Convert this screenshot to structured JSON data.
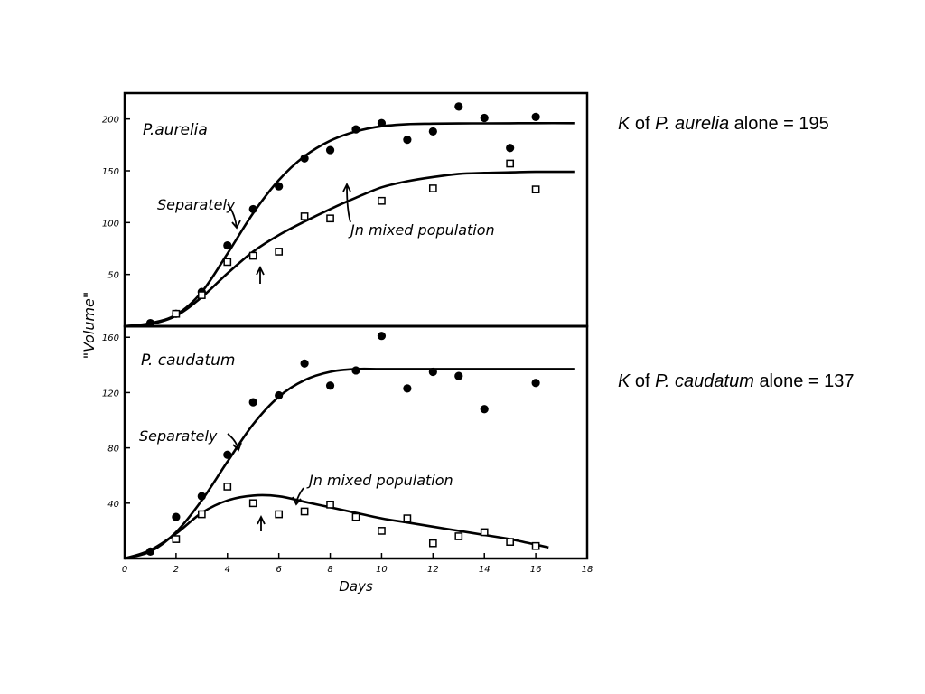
{
  "annotations": {
    "aurelia_note": {
      "k": "K",
      "of": "of",
      "species": "P. aurelia",
      "rest": "alone = 195"
    },
    "caudatum_note": {
      "k": "K",
      "of": "of",
      "species": "P. caudatum",
      "rest": "alone = 137"
    }
  },
  "chart_data": [
    {
      "type": "scatter",
      "panel_label": "P.aurelia",
      "ylabel": "\"Volume\"",
      "xlim": [
        0,
        18
      ],
      "ylim": [
        0,
        225
      ],
      "yticks": [
        50,
        100,
        150,
        200
      ],
      "grid": false,
      "annotations": [
        "Separately",
        "Jn mixed population"
      ],
      "series": [
        {
          "name": "Separately",
          "points": [
            [
              1,
              3
            ],
            [
              2,
              12
            ],
            [
              3,
              33
            ],
            [
              4,
              78
            ],
            [
              5,
              113
            ],
            [
              6,
              135
            ],
            [
              7,
              162
            ],
            [
              8,
              170
            ],
            [
              9,
              190
            ],
            [
              10,
              196
            ],
            [
              11,
              180
            ],
            [
              12,
              188
            ],
            [
              13,
              212
            ],
            [
              14,
              201
            ],
            [
              15,
              172
            ],
            [
              16,
              202
            ]
          ],
          "curve": [
            [
              0,
              0
            ],
            [
              1,
              3
            ],
            [
              2,
              11
            ],
            [
              3,
              33
            ],
            [
              4,
              70
            ],
            [
              5,
              109
            ],
            [
              6,
              141
            ],
            [
              7,
              164
            ],
            [
              8,
              179
            ],
            [
              9,
              188
            ],
            [
              10,
              193
            ],
            [
              11,
              195
            ],
            [
              12,
              195.5
            ],
            [
              13,
              195.7
            ],
            [
              14,
              195.8
            ],
            [
              15,
              195.9
            ],
            [
              16,
              196
            ],
            [
              17.5,
              196
            ]
          ]
        },
        {
          "name": "Jn mixed population",
          "points": [
            [
              2,
              12
            ],
            [
              3,
              30
            ],
            [
              4,
              62
            ],
            [
              5,
              68
            ],
            [
              6,
              72
            ],
            [
              7,
              106
            ],
            [
              8,
              104
            ],
            [
              10,
              121
            ],
            [
              12,
              133
            ],
            [
              15,
              157
            ],
            [
              16,
              132
            ]
          ],
          "curve": [
            [
              0,
              0
            ],
            [
              1,
              2
            ],
            [
              2,
              10
            ],
            [
              3,
              28
            ],
            [
              4,
              51
            ],
            [
              5,
              72
            ],
            [
              6,
              88
            ],
            [
              7,
              101
            ],
            [
              8,
              113
            ],
            [
              9,
              124
            ],
            [
              10,
              134
            ],
            [
              11,
              140
            ],
            [
              12,
              144
            ],
            [
              13,
              147
            ],
            [
              14,
              148
            ],
            [
              15,
              148.5
            ],
            [
              16,
              149
            ],
            [
              17.5,
              149
            ]
          ]
        }
      ]
    },
    {
      "type": "scatter",
      "panel_label": "P. caudatum",
      "xlabel": "Days",
      "ylabel": "\"Volume\"",
      "xlim": [
        0,
        18
      ],
      "ylim": [
        0,
        168
      ],
      "xticks": [
        0,
        2,
        4,
        6,
        8,
        10,
        12,
        14,
        16,
        18
      ],
      "yticks": [
        40,
        80,
        120,
        160
      ],
      "grid": false,
      "annotations": [
        "Separately",
        "Jn mixed population"
      ],
      "series": [
        {
          "name": "Separately",
          "points": [
            [
              1,
              5
            ],
            [
              2,
              30
            ],
            [
              3,
              45
            ],
            [
              4,
              75
            ],
            [
              5,
              113
            ],
            [
              6,
              118
            ],
            [
              7,
              141
            ],
            [
              8,
              125
            ],
            [
              9,
              136
            ],
            [
              10,
              161
            ],
            [
              11,
              123
            ],
            [
              12,
              135
            ],
            [
              13,
              132
            ],
            [
              14,
              108
            ],
            [
              16,
              127
            ]
          ],
          "curve": [
            [
              0,
              0
            ],
            [
              1,
              5
            ],
            [
              2,
              19
            ],
            [
              3,
              42
            ],
            [
              4,
              70
            ],
            [
              5,
              97
            ],
            [
              6,
              117
            ],
            [
              7,
              129
            ],
            [
              8,
              135
            ],
            [
              9,
              137
            ],
            [
              10,
              137
            ],
            [
              12,
              137
            ],
            [
              14,
              137
            ],
            [
              16,
              137
            ],
            [
              17.5,
              137
            ]
          ]
        },
        {
          "name": "Jn mixed population",
          "points": [
            [
              2,
              14
            ],
            [
              3,
              32
            ],
            [
              4,
              52
            ],
            [
              5,
              40
            ],
            [
              6,
              32
            ],
            [
              7,
              34
            ],
            [
              8,
              39
            ],
            [
              9,
              30
            ],
            [
              10,
              20
            ],
            [
              11,
              29
            ],
            [
              12,
              11
            ],
            [
              13,
              16
            ],
            [
              14,
              19
            ],
            [
              15,
              12
            ],
            [
              16,
              9
            ]
          ],
          "curve": [
            [
              0,
              0
            ],
            [
              1,
              6
            ],
            [
              2,
              18
            ],
            [
              3,
              33
            ],
            [
              4,
              42
            ],
            [
              5,
              45.5
            ],
            [
              6,
              45
            ],
            [
              7,
              41
            ],
            [
              8,
              37
            ],
            [
              9,
              33
            ],
            [
              10,
              29
            ],
            [
              11,
              26
            ],
            [
              12,
              23
            ],
            [
              13,
              20
            ],
            [
              14,
              17
            ],
            [
              15,
              14
            ],
            [
              16,
              10
            ],
            [
              16.5,
              8
            ]
          ]
        }
      ]
    }
  ]
}
